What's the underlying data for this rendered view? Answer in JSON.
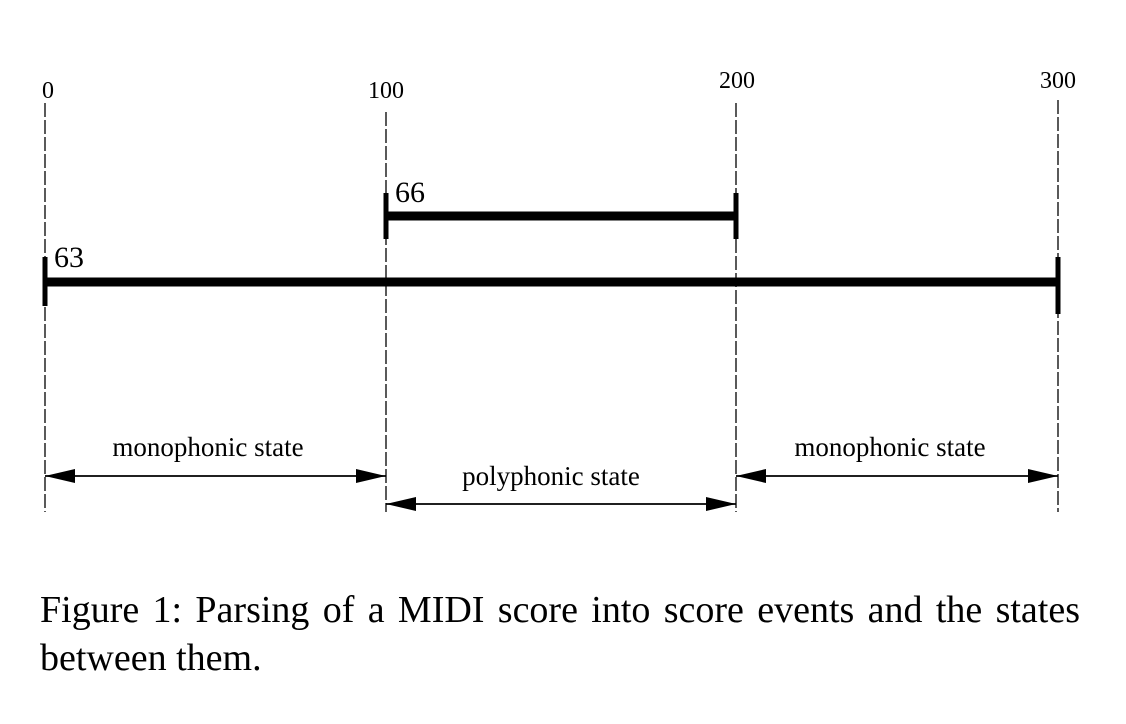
{
  "timeline": {
    "ticks": [
      {
        "value": 0,
        "label": "0"
      },
      {
        "value": 100,
        "label": "100"
      },
      {
        "value": 200,
        "label": "200"
      },
      {
        "value": 300,
        "label": "300"
      }
    ],
    "notes": [
      {
        "pitch": "66",
        "start": 100,
        "end": 200
      },
      {
        "pitch": "63",
        "start": 0,
        "end": 300
      }
    ],
    "states": [
      {
        "label": "monophonic state",
        "start": 0,
        "end": 100
      },
      {
        "label": "polyphonic state",
        "start": 100,
        "end": 200
      },
      {
        "label": "monophonic state",
        "start": 200,
        "end": 300
      }
    ]
  },
  "caption": "Figure 1:  Parsing of a MIDI score into score events and the states between them."
}
